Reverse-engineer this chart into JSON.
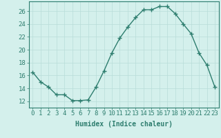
{
  "x": [
    0,
    1,
    2,
    3,
    4,
    5,
    6,
    7,
    8,
    9,
    10,
    11,
    12,
    13,
    14,
    15,
    16,
    17,
    18,
    19,
    20,
    21,
    22,
    23
  ],
  "y": [
    16.5,
    15.0,
    14.2,
    13.0,
    13.0,
    12.1,
    12.1,
    12.2,
    14.2,
    16.7,
    19.5,
    21.8,
    23.5,
    25.0,
    26.2,
    26.2,
    26.7,
    26.7,
    25.6,
    24.0,
    22.5,
    19.5,
    17.6,
    14.2
  ],
  "line_color": "#2d7d6e",
  "marker": "+",
  "marker_size": 4,
  "line_width": 1.0,
  "bg_color": "#d4f0ec",
  "grid_color": "#b8ddd8",
  "axis_color": "#2d7d6e",
  "tick_color": "#2d7d6e",
  "xlabel": "Humidex (Indice chaleur)",
  "xlabel_fontsize": 7,
  "xlabel_color": "#2d7d6e",
  "ylabel_ticks": [
    12,
    14,
    16,
    18,
    20,
    22,
    24,
    26
  ],
  "ylim": [
    11.0,
    27.5
  ],
  "xlim": [
    -0.5,
    23.5
  ],
  "xticks": [
    0,
    1,
    2,
    3,
    4,
    5,
    6,
    7,
    8,
    9,
    10,
    11,
    12,
    13,
    14,
    15,
    16,
    17,
    18,
    19,
    20,
    21,
    22,
    23
  ],
  "tick_fontsize": 6.5,
  "font_family": "monospace"
}
